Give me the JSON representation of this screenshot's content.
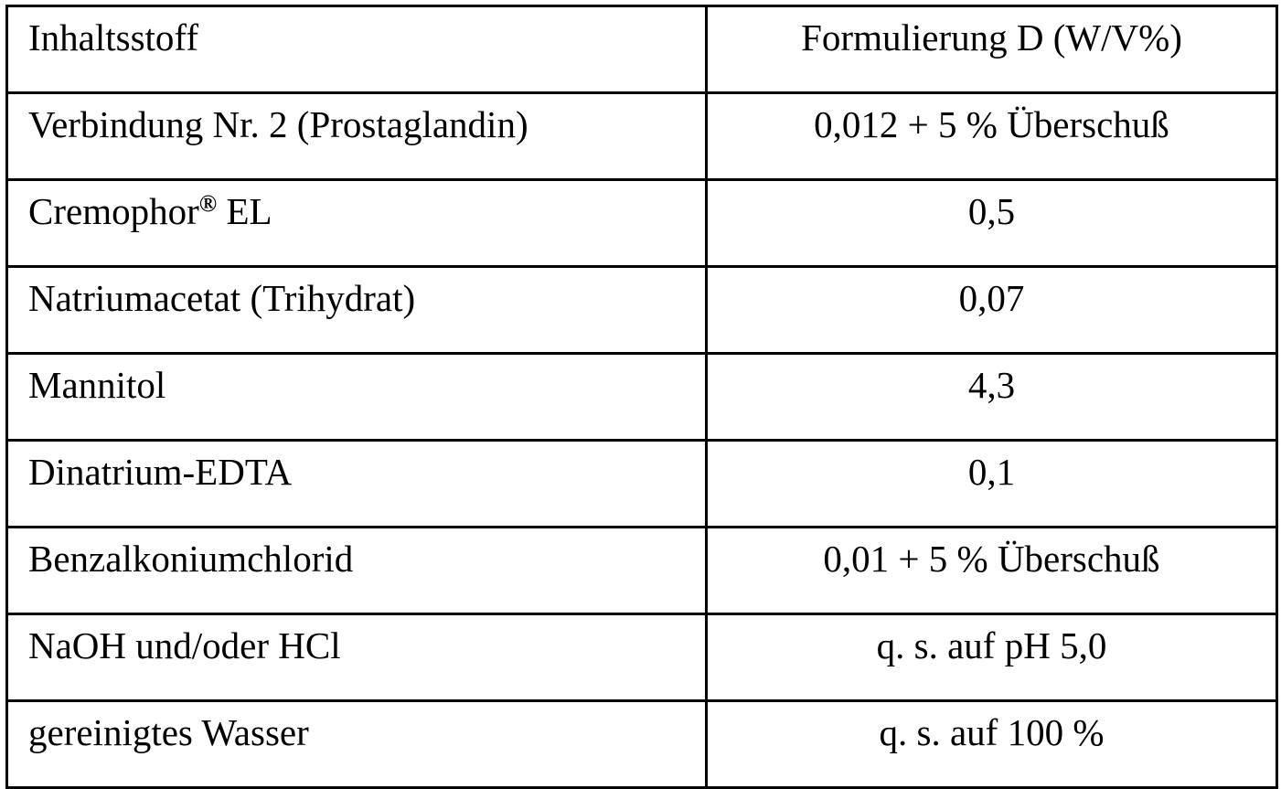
{
  "table": {
    "headers": [
      "Inhaltsstoff",
      "Formulierung D (W/V%)"
    ],
    "rows": [
      {
        "ingredient": "Verbindung Nr. 2 (Prostaglandin)",
        "amount": "0,012 + 5 % Überschuß"
      },
      {
        "ingredient": "Cremophor",
        "ingredient_sup": "®",
        "ingredient_suffix": " EL",
        "amount": "0,5"
      },
      {
        "ingredient": "Natriumacetat (Trihydrat)",
        "amount": "0,07"
      },
      {
        "ingredient": "Mannitol",
        "amount": "4,3"
      },
      {
        "ingredient": "Dinatrium-EDTA",
        "amount": "0,1"
      },
      {
        "ingredient": "Benzalkoniumchlorid",
        "amount": "0,01 + 5 % Überschuß"
      },
      {
        "ingredient": "NaOH und/oder HCl",
        "amount": "q. s. auf pH 5,0"
      },
      {
        "ingredient": "gereinigtes Wasser",
        "amount": "q. s. auf 100 %"
      }
    ]
  }
}
